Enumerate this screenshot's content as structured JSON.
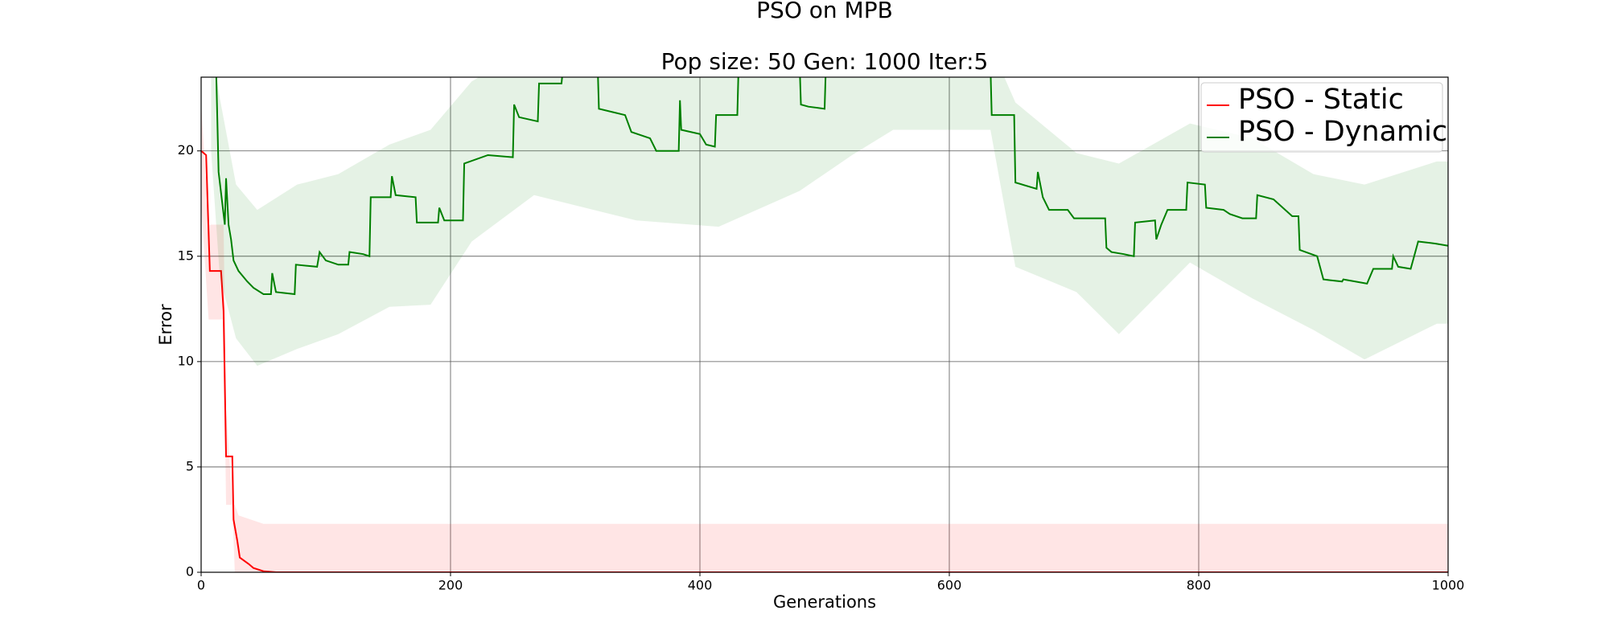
{
  "chart_data": {
    "type": "line",
    "title": "PSO on MPB",
    "subtitle": "Pop size: 50  Gen: 1000  Iter:5",
    "xlabel": "Generations",
    "ylabel": "Error",
    "xlim": [
      0,
      1000
    ],
    "ylim": [
      0,
      23.5
    ],
    "xticks": [
      0,
      200,
      400,
      600,
      800,
      1000
    ],
    "yticks": [
      0,
      5,
      10,
      15,
      20
    ],
    "grid": true,
    "legend_loc": "upper right",
    "series": [
      {
        "name": "PSO - Static",
        "color": "#ff0000",
        "x": [
          0,
          4,
          7,
          16,
          18,
          20,
          25,
          26,
          29,
          31,
          38,
          42,
          50,
          60,
          1000
        ],
        "values": [
          20,
          19.8,
          14.3,
          14.3,
          12.4,
          5.5,
          5.5,
          2.5,
          1.5,
          0.7,
          0.4,
          0.2,
          0.05,
          0,
          0
        ],
        "band_x": [
          0,
          6,
          18,
          20,
          25,
          27,
          30,
          40,
          50,
          1000
        ],
        "band_lower": [
          17.5,
          12,
          12,
          3.2,
          3.2,
          0,
          0,
          0,
          0,
          0
        ],
        "band_upper": [
          22.3,
          16.5,
          16.5,
          7.8,
          3.2,
          3.2,
          2.7,
          2.5,
          2.3,
          2.3
        ]
      },
      {
        "name": "PSO - Dynamic",
        "color": "#008000",
        "x": [
          10,
          12,
          14,
          17,
          19,
          20,
          22,
          24,
          26,
          30,
          37,
          42,
          50,
          56,
          57,
          60,
          75,
          76,
          93,
          95,
          100,
          110,
          118,
          119,
          130,
          135,
          136,
          152,
          153,
          156,
          172,
          173,
          190,
          191,
          195,
          210,
          211,
          230,
          250,
          251,
          255,
          270,
          271,
          289,
          290,
          300,
          318,
          319,
          340,
          345,
          360,
          365,
          383,
          384,
          385,
          400,
          405,
          412,
          413,
          430,
          431,
          480,
          481,
          487,
          500,
          501,
          633,
          634,
          652,
          653,
          670,
          671,
          675,
          680,
          695,
          700,
          725,
          726,
          730,
          740,
          748,
          749,
          765,
          766,
          770,
          775,
          790,
          791,
          805,
          806,
          820,
          825,
          835,
          846,
          847,
          860,
          875,
          880,
          881,
          895,
          900,
          915,
          916,
          935,
          940,
          955,
          956,
          960,
          970,
          976,
          990,
          1000
        ],
        "values": [
          24,
          24,
          19,
          17.5,
          16.5,
          18.7,
          16.5,
          15.8,
          14.8,
          14.3,
          13.8,
          13.5,
          13.2,
          13.2,
          14.2,
          13.3,
          13.2,
          14.6,
          14.5,
          15.2,
          14.8,
          14.6,
          14.6,
          15.2,
          15.1,
          15.0,
          17.8,
          17.8,
          18.8,
          17.9,
          17.8,
          16.6,
          16.6,
          17.3,
          16.7,
          16.7,
          19.4,
          19.8,
          19.7,
          22.2,
          21.6,
          21.4,
          23.2,
          23.2,
          23.8,
          24,
          24,
          22,
          21.7,
          20.9,
          20.6,
          20,
          20,
          22.4,
          21,
          20.8,
          20.3,
          20.2,
          21.7,
          21.7,
          24,
          24,
          22.2,
          22.1,
          22,
          24,
          24,
          21.7,
          21.7,
          18.5,
          18.2,
          19,
          17.8,
          17.2,
          17.2,
          16.8,
          16.8,
          15.4,
          15.2,
          15.1,
          15.0,
          16.6,
          16.7,
          15.8,
          16.5,
          17.2,
          17.2,
          18.5,
          18.4,
          17.3,
          17.2,
          17.0,
          16.8,
          16.8,
          17.9,
          17.7,
          16.9,
          16.9,
          15.3,
          15.0,
          13.9,
          13.8,
          13.9,
          13.7,
          14.4,
          14.4,
          15.0,
          14.5,
          14.4,
          15.7,
          15.6,
          15.5
        ],
        "band_x": [
          8,
          15,
          28,
          45,
          77,
          110,
          151,
          184,
          217,
          267,
          349,
          415,
          480,
          522,
          555,
          633,
          653,
          702,
          736,
          793,
          843,
          892,
          933,
          991,
          1000
        ],
        "band_lower": [
          20,
          14,
          11.1,
          9.8,
          10.6,
          11.3,
          12.6,
          12.7,
          15.7,
          17.9,
          16.7,
          16.4,
          18.1,
          19.8,
          21,
          21,
          14.5,
          13.3,
          11.3,
          14.7,
          13,
          11.5,
          10.1,
          11.8,
          11.8
        ],
        "band_upper": [
          25,
          22.5,
          18.4,
          17.2,
          18.4,
          18.9,
          20.3,
          21,
          23.3,
          25,
          25,
          25,
          25,
          25,
          25,
          25,
          22.3,
          19.9,
          19.4,
          21.3,
          20.6,
          18.9,
          18.4,
          19.5,
          19.5
        ]
      }
    ]
  }
}
